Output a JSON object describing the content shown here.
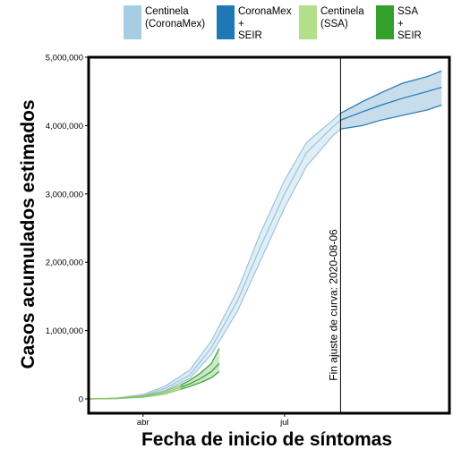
{
  "chart_data": {
    "type": "area",
    "xlabel": "Fecha de inicio de síntomas",
    "ylabel": "Casos acumulados estimados",
    "x_ticks": [
      "abr",
      "jul"
    ],
    "y_ticks": [
      "0",
      "1,000,000",
      "2,000,000",
      "3,000,000",
      "4,000,000",
      "5,000,000"
    ],
    "ylim": [
      0,
      5000000
    ],
    "x_range": [
      "2020-02-26",
      "2020-10-15"
    ],
    "grid": false,
    "legend_position": "top",
    "annotation": {
      "date": "2020-08-06",
      "text": "Fin ajuste de curva: 2020-08-06"
    },
    "series": [
      {
        "name": "Centinela\n(CoronaMex)",
        "color": "#a6cee3",
        "x": [
          "2020-02-26",
          "2020-03-15",
          "2020-04-01",
          "2020-04-15",
          "2020-05-01",
          "2020-05-15",
          "2020-06-01",
          "2020-06-15",
          "2020-07-01",
          "2020-07-15",
          "2020-08-01",
          "2020-08-06"
        ],
        "lower": [
          0,
          5000,
          40000,
          120000,
          300000,
          650000,
          1300000,
          2000000,
          2800000,
          3400000,
          3850000,
          3950000
        ],
        "mid": [
          0,
          8000,
          50000,
          150000,
          350000,
          750000,
          1450000,
          2200000,
          3000000,
          3600000,
          3980000,
          4080000
        ],
        "upper": [
          0,
          12000,
          65000,
          185000,
          420000,
          850000,
          1600000,
          2400000,
          3200000,
          3750000,
          4080000,
          4180000
        ]
      },
      {
        "name": "CoronaMex\n+\nSEIR",
        "color": "#1f78b4",
        "x": [
          "2020-08-06",
          "2020-08-20",
          "2020-09-01",
          "2020-09-15",
          "2020-10-01",
          "2020-10-10"
        ],
        "lower": [
          3950000,
          4000000,
          4080000,
          4150000,
          4230000,
          4300000
        ],
        "mid": [
          4080000,
          4200000,
          4300000,
          4400000,
          4500000,
          4560000
        ],
        "upper": [
          4180000,
          4350000,
          4480000,
          4620000,
          4720000,
          4800000
        ]
      },
      {
        "name": "Centinela\n(SSA)",
        "color": "#b2df8a",
        "x": [
          "2020-02-26",
          "2020-03-15",
          "2020-04-01",
          "2020-04-15",
          "2020-04-25"
        ],
        "lower": [
          0,
          5000,
          25000,
          70000,
          140000
        ],
        "mid": [
          0,
          7000,
          35000,
          90000,
          170000
        ],
        "upper": [
          0,
          10000,
          45000,
          110000,
          200000
        ]
      },
      {
        "name": "SSA\n+\nSEIR",
        "color": "#33a02c",
        "x": [
          "2020-04-25",
          "2020-05-01",
          "2020-05-08",
          "2020-05-15",
          "2020-05-20"
        ],
        "lower": [
          140000,
          180000,
          240000,
          310000,
          400000
        ],
        "mid": [
          170000,
          220000,
          300000,
          400000,
          520000
        ],
        "upper": [
          200000,
          270000,
          380000,
          520000,
          740000
        ]
      }
    ]
  }
}
